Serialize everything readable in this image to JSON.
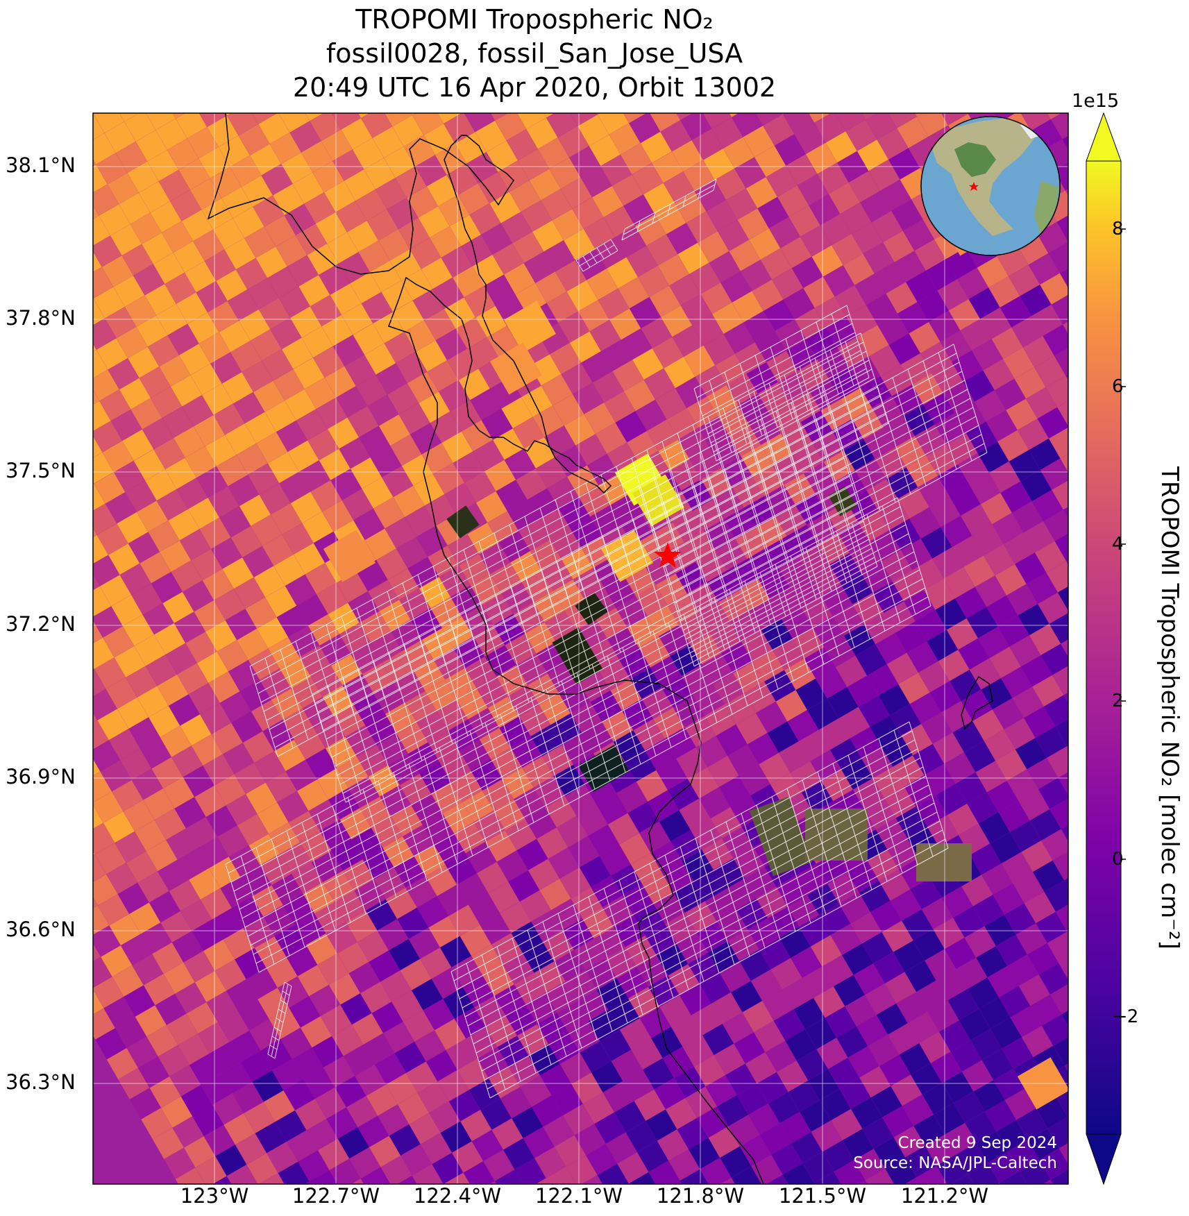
{
  "title": {
    "line1": "TROPOMI Tropospheric NO₂",
    "line2": "fossil0028, fossil_San_Jose_USA",
    "line3": "20:49 UTC 16 Apr 2020, Orbit 13002"
  },
  "axes": {
    "lat_ticks": [
      "38.1°N",
      "37.8°N",
      "37.5°N",
      "37.2°N",
      "36.9°N",
      "36.6°N",
      "36.3°N"
    ],
    "lon_ticks": [
      "123°W",
      "122.7°W",
      "122.4°W",
      "122.1°W",
      "121.8°W",
      "121.5°W",
      "121.2°W"
    ]
  },
  "colorbar": {
    "exponent": "1e15",
    "ticks": [
      "8",
      "6",
      "4",
      "2",
      "0",
      "−2"
    ],
    "label": "TROPOMI Tropospheric NO₂ [molec cm⁻²]",
    "range": [
      -3.5,
      8.8
    ],
    "colormap": "plasma"
  },
  "map": {
    "target_marker": "red-star",
    "inset": "globe-north-america"
  },
  "credits": {
    "created": "Created 9 Sep 2024",
    "source": "Source: NASA/JPL-Caltech"
  }
}
